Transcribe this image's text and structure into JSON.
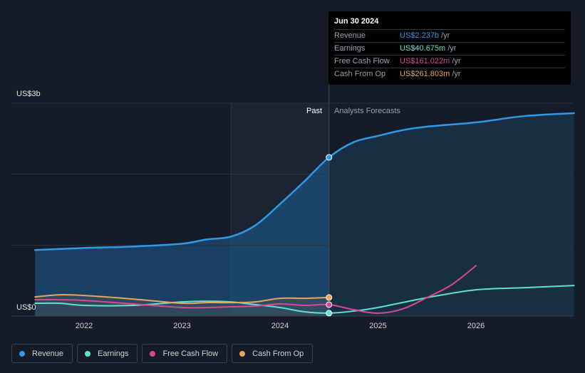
{
  "tooltip": {
    "date": "Jun 30 2024",
    "rows": [
      {
        "label": "Revenue",
        "value": "US$2.237b",
        "unit": "/yr",
        "color": "#2f9ae8"
      },
      {
        "label": "Earnings",
        "value": "US$40.675m",
        "unit": "/yr",
        "color": "#5fe3cf"
      },
      {
        "label": "Free Cash Flow",
        "value": "US$161.022m",
        "unit": "/yr",
        "color": "#d9498f"
      },
      {
        "label": "Cash From Op",
        "value": "US$261.803m",
        "unit": "/yr",
        "color": "#eba35f"
      }
    ]
  },
  "labels": {
    "y_top": "US$3b",
    "y_zero": "US$0",
    "past": "Past",
    "forecast": "Analysts Forecasts"
  },
  "legend": [
    {
      "label": "Revenue",
      "color": "#2f9ae8"
    },
    {
      "label": "Earnings",
      "color": "#5fe3cf"
    },
    {
      "label": "Free Cash Flow",
      "color": "#d9498f"
    },
    {
      "label": "Cash From Op",
      "color": "#eba35f"
    }
  ],
  "chart_data": {
    "type": "line",
    "x_ticks": [
      "2022",
      "2023",
      "2024",
      "2025",
      "2026"
    ],
    "ylim_billions": [
      0,
      3
    ],
    "y_tick_labels": [
      "US$0",
      "US$3b"
    ],
    "past_until": 2024.5,
    "series": [
      {
        "name": "Revenue",
        "color": "#2f9ae8",
        "fill": true,
        "points": [
          [
            2021.5,
            0.93
          ],
          [
            2022.0,
            0.96
          ],
          [
            2022.5,
            0.98
          ],
          [
            2023.0,
            1.02
          ],
          [
            2023.25,
            1.08
          ],
          [
            2023.5,
            1.12
          ],
          [
            2023.75,
            1.28
          ],
          [
            2024.0,
            1.58
          ],
          [
            2024.25,
            1.9
          ],
          [
            2024.5,
            2.237
          ],
          [
            2024.75,
            2.45
          ],
          [
            2025.0,
            2.54
          ],
          [
            2025.25,
            2.62
          ],
          [
            2025.5,
            2.67
          ],
          [
            2026.0,
            2.73
          ],
          [
            2026.5,
            2.82
          ],
          [
            2027.0,
            2.86
          ]
        ]
      },
      {
        "name": "Earnings",
        "color": "#5fe3cf",
        "fill": false,
        "points": [
          [
            2021.5,
            0.18
          ],
          [
            2021.75,
            0.18
          ],
          [
            2022.0,
            0.15
          ],
          [
            2022.5,
            0.15
          ],
          [
            2023.0,
            0.2
          ],
          [
            2023.25,
            0.21
          ],
          [
            2023.5,
            0.2
          ],
          [
            2023.75,
            0.16
          ],
          [
            2024.0,
            0.12
          ],
          [
            2024.25,
            0.06
          ],
          [
            2024.5,
            0.041
          ],
          [
            2024.75,
            0.07
          ],
          [
            2025.0,
            0.12
          ],
          [
            2025.5,
            0.26
          ],
          [
            2026.0,
            0.37
          ],
          [
            2026.5,
            0.4
          ],
          [
            2027.0,
            0.43
          ]
        ]
      },
      {
        "name": "Free Cash Flow",
        "color": "#d9498f",
        "fill": false,
        "points": [
          [
            2021.5,
            0.23
          ],
          [
            2021.75,
            0.23
          ],
          [
            2022.0,
            0.22
          ],
          [
            2022.5,
            0.17
          ],
          [
            2023.0,
            0.12
          ],
          [
            2023.25,
            0.12
          ],
          [
            2023.5,
            0.13
          ],
          [
            2023.75,
            0.14
          ],
          [
            2024.0,
            0.17
          ],
          [
            2024.25,
            0.15
          ],
          [
            2024.5,
            0.161
          ],
          [
            2024.75,
            0.09
          ],
          [
            2025.0,
            0.04
          ],
          [
            2025.25,
            0.1
          ],
          [
            2025.5,
            0.26
          ],
          [
            2025.75,
            0.44
          ],
          [
            2026.0,
            0.71
          ]
        ]
      },
      {
        "name": "Cash From Op",
        "color": "#eba35f",
        "fill": false,
        "points": [
          [
            2021.5,
            0.27
          ],
          [
            2021.75,
            0.3
          ],
          [
            2022.0,
            0.29
          ],
          [
            2022.5,
            0.24
          ],
          [
            2023.0,
            0.18
          ],
          [
            2023.25,
            0.19
          ],
          [
            2023.5,
            0.19
          ],
          [
            2023.75,
            0.2
          ],
          [
            2024.0,
            0.25
          ],
          [
            2024.25,
            0.25
          ],
          [
            2024.5,
            0.262
          ]
        ]
      }
    ]
  }
}
